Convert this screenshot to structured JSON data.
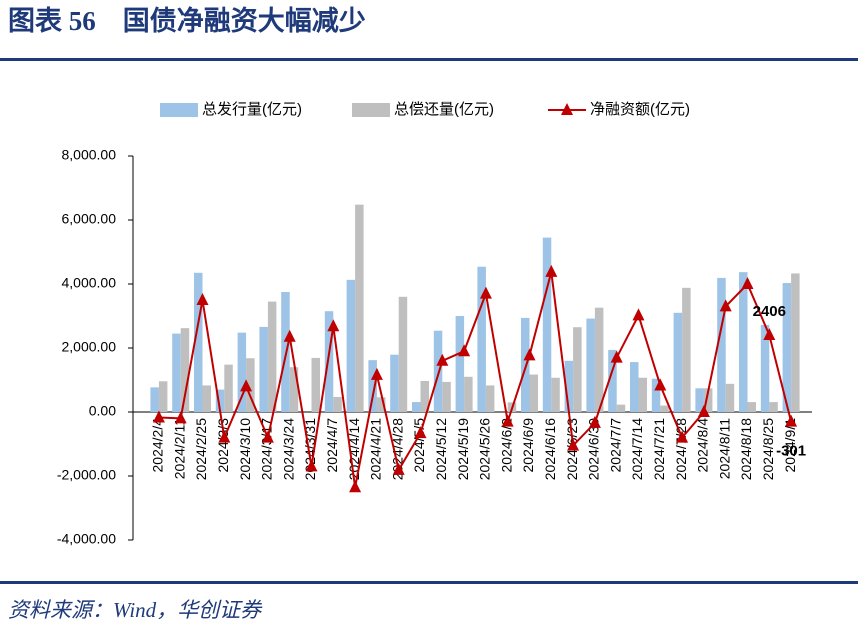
{
  "chart_data": {
    "type": "bar-line",
    "title": "图表 56　国债净融资大幅减少",
    "source": "资料来源：Wind，华创证券",
    "categories": [
      "2024/2/4",
      "2024/2/11",
      "2024/2/25",
      "2024/3/3",
      "2024/3/10",
      "2024/3/17",
      "2024/3/24",
      "2024/3/31",
      "2024/4/7",
      "2024/4/14",
      "2024/4/21",
      "2024/4/28",
      "2024/5/5",
      "2024/5/12",
      "2024/5/19",
      "2024/5/26",
      "2024/6/2",
      "2024/6/9",
      "2024/6/16",
      "2024/6/23",
      "2024/6/30",
      "2024/7/7",
      "2024/7/14",
      "2024/7/21",
      "2024/7/28",
      "2024/8/4",
      "2024/8/11",
      "2024/8/18",
      "2024/8/25",
      "2024/9/1"
    ],
    "series": [
      {
        "name": "总发行量(亿元)",
        "type": "bar",
        "color": "#9dc3e6",
        "values": [
          770,
          2450,
          4350,
          700,
          2480,
          2660,
          3750,
          0,
          3150,
          4130,
          1620,
          1790,
          310,
          2540,
          3000,
          4540,
          0,
          2940,
          5450,
          1600,
          2920,
          1940,
          1560,
          1040,
          3100,
          740,
          4190,
          4370,
          2720,
          4030
        ]
      },
      {
        "name": "总偿还量(亿元)",
        "type": "bar",
        "color": "#bfbfbf",
        "values": [
          960,
          2620,
          830,
          1480,
          1680,
          3450,
          1400,
          1690,
          470,
          6480,
          460,
          3600,
          970,
          940,
          1100,
          830,
          300,
          1170,
          1070,
          2650,
          3260,
          230,
          1070,
          200,
          3880,
          740,
          880,
          310,
          310,
          4330
        ]
      },
      {
        "name": "净融资额(亿元)",
        "type": "line",
        "color": "#c00000",
        "values": [
          -170,
          -200,
          3500,
          -800,
          800,
          -800,
          2350,
          -1700,
          2680,
          -2350,
          1160,
          -1810,
          -660,
          1600,
          1900,
          3700,
          -300,
          1770,
          4380,
          -1050,
          -340,
          1700,
          3020,
          830,
          -800,
          0,
          3300,
          4000,
          2406,
          -301
        ],
        "value_labels": [
          null,
          null,
          null,
          null,
          null,
          null,
          null,
          null,
          null,
          null,
          null,
          null,
          null,
          null,
          null,
          null,
          null,
          null,
          null,
          null,
          null,
          null,
          null,
          null,
          null,
          null,
          null,
          null,
          "2406",
          "-301"
        ]
      }
    ],
    "ylim": [
      -4000,
      8000
    ],
    "yticks": [
      {
        "value": -4000,
        "label": "-4,000.00"
      },
      {
        "value": -2000,
        "label": "-2,000.00"
      },
      {
        "value": 0,
        "label": "0.00"
      },
      {
        "value": 2000,
        "label": "2,000.00"
      },
      {
        "value": 4000,
        "label": "4,000.00"
      },
      {
        "value": 6000,
        "label": "6,000.00"
      },
      {
        "value": 8000,
        "label": "8,000.00"
      }
    ]
  }
}
